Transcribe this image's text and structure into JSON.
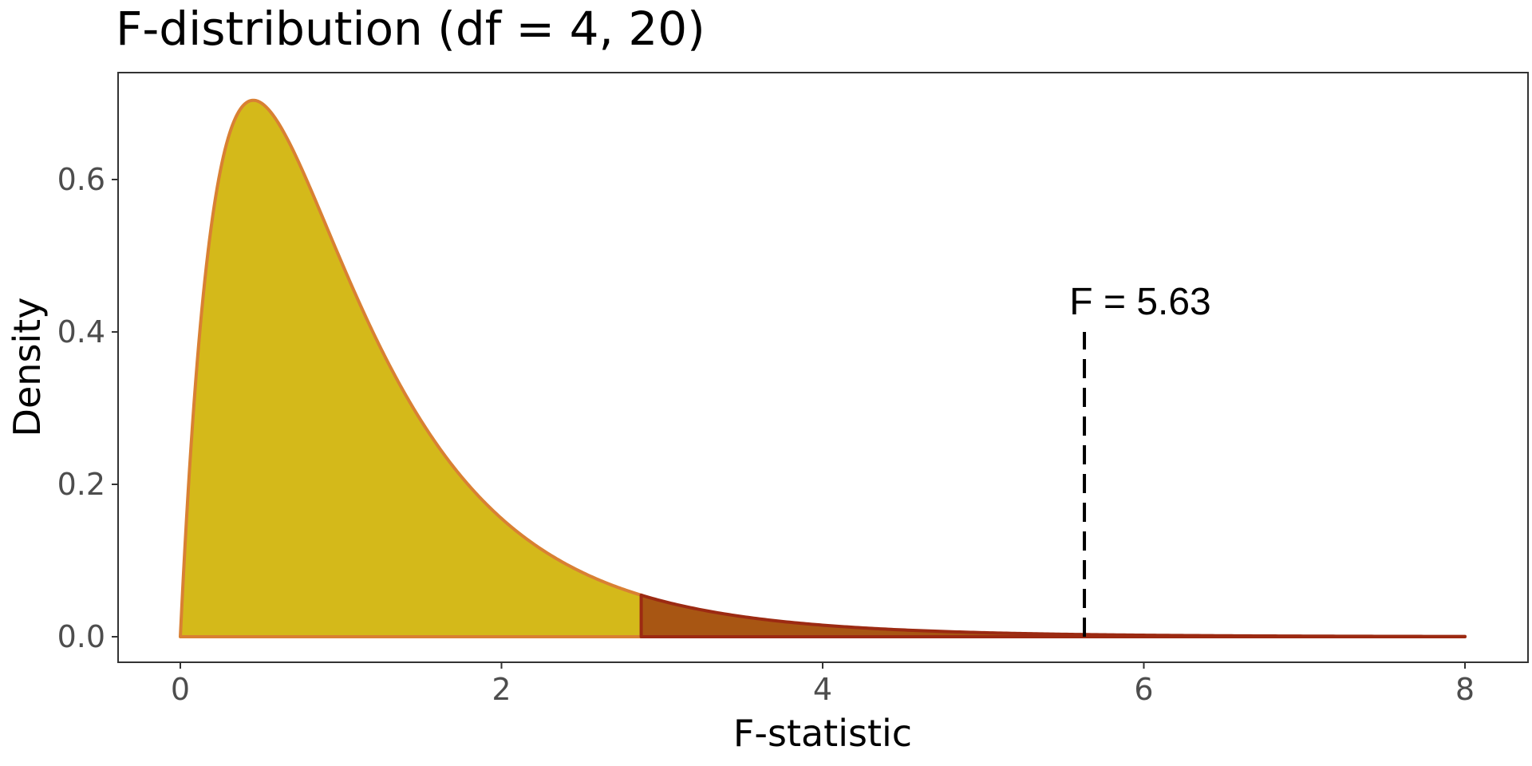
{
  "chart_data": {
    "type": "area",
    "title": "F-distribution (df = 4, 20)",
    "xlabel": "F-statistic",
    "ylabel": "Density",
    "df1": 4,
    "df2": 20,
    "xlim": [
      0,
      8
    ],
    "ylim": [
      0,
      0.7
    ],
    "x_ticks": [
      0,
      2,
      4,
      6,
      8
    ],
    "x_tick_labels": [
      "0",
      "2",
      "4",
      "6",
      "8"
    ],
    "y_ticks": [
      0,
      0.2,
      0.4,
      0.6
    ],
    "y_tick_labels": [
      "0.0",
      "0.2",
      "0.4",
      "0.6"
    ],
    "grid": false,
    "critical_value": 2.87,
    "observed_f": 5.63,
    "annotation": "F = 5.63",
    "annotation_line_top": 0.4,
    "colors": {
      "body_fill": "#d4b91a",
      "body_outline": "#d98033",
      "tail_fill": "#a85613",
      "tail_outline": "#9c2a12",
      "marker_line": "#000000",
      "panel_border": "#333333"
    }
  }
}
